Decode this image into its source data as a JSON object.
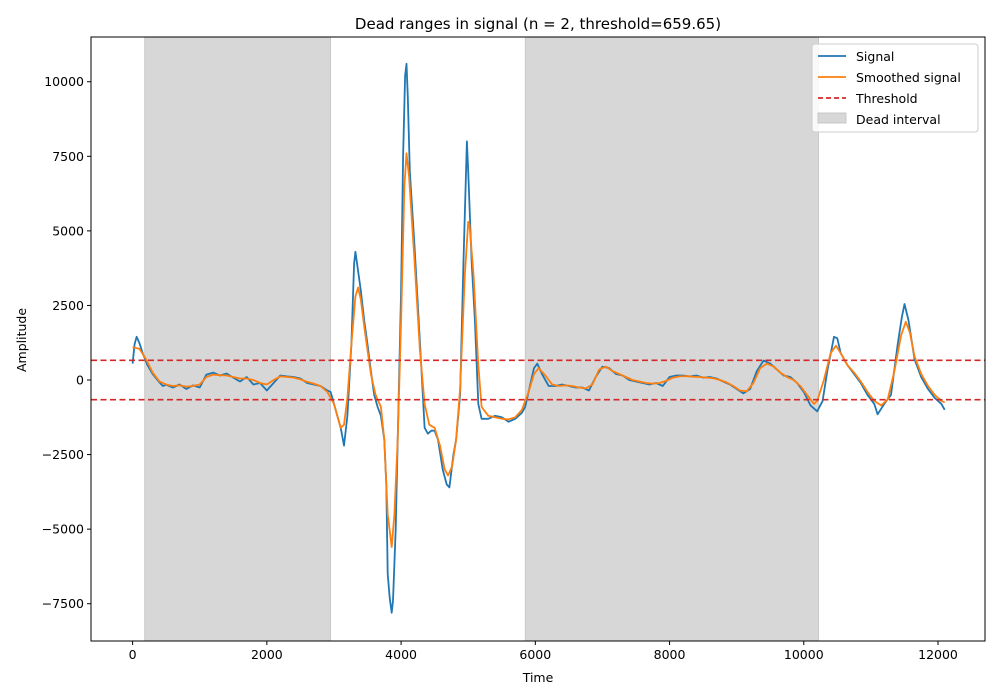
{
  "chart_data": {
    "type": "line",
    "title": "Dead ranges in signal (n = 2, threshold=659.65)",
    "xlabel": "Time",
    "ylabel": "Amplitude",
    "xlim": [
      -620,
      12700
    ],
    "ylim": [
      -8750,
      11500
    ],
    "xticks": [
      0,
      2000,
      4000,
      6000,
      8000,
      10000,
      12000
    ],
    "xtick_labels": [
      "0",
      "2000",
      "4000",
      "6000",
      "8000",
      "10000",
      "12000"
    ],
    "yticks": [
      -7500,
      -5000,
      -2500,
      0,
      2500,
      5000,
      7500,
      10000
    ],
    "ytick_labels": [
      "−7500",
      "−5000",
      "−2500",
      "0",
      "2500",
      "5000",
      "7500",
      "10000"
    ],
    "threshold": 659.65,
    "threshold_color": "#d62728",
    "dead_intervals": [
      [
        180,
        2950
      ],
      [
        5850,
        10220
      ]
    ],
    "dead_color": "#d7d7d7",
    "legend_position": "top-right",
    "legend": [
      "Signal",
      "Smoothed signal",
      "Threshold",
      "Dead interval"
    ],
    "series": [
      {
        "name": "Signal",
        "color": "#1f77b4",
        "points": [
          [
            0,
            550
          ],
          [
            30,
            1200
          ],
          [
            60,
            1450
          ],
          [
            100,
            1250
          ],
          [
            150,
            900
          ],
          [
            220,
            500
          ],
          [
            300,
            200
          ],
          [
            400,
            -80
          ],
          [
            450,
            -200
          ],
          [
            500,
            -160
          ],
          [
            600,
            -250
          ],
          [
            700,
            -150
          ],
          [
            800,
            -300
          ],
          [
            900,
            -180
          ],
          [
            1000,
            -250
          ],
          [
            1100,
            180
          ],
          [
            1200,
            250
          ],
          [
            1300,
            150
          ],
          [
            1400,
            220
          ],
          [
            1500,
            80
          ],
          [
            1600,
            -50
          ],
          [
            1700,
            100
          ],
          [
            1800,
            -150
          ],
          [
            1900,
            -100
          ],
          [
            2000,
            -350
          ],
          [
            2100,
            -100
          ],
          [
            2200,
            150
          ],
          [
            2300,
            120
          ],
          [
            2400,
            100
          ],
          [
            2500,
            50
          ],
          [
            2600,
            -100
          ],
          [
            2700,
            -150
          ],
          [
            2800,
            -200
          ],
          [
            2900,
            -350
          ],
          [
            2950,
            -400
          ],
          [
            3050,
            -1200
          ],
          [
            3100,
            -1600
          ],
          [
            3150,
            -2200
          ],
          [
            3200,
            -1200
          ],
          [
            3260,
            1200
          ],
          [
            3300,
            3900
          ],
          [
            3320,
            4300
          ],
          [
            3350,
            3800
          ],
          [
            3400,
            3000
          ],
          [
            3450,
            2000
          ],
          [
            3500,
            1200
          ],
          [
            3550,
            300
          ],
          [
            3600,
            -500
          ],
          [
            3650,
            -900
          ],
          [
            3700,
            -1200
          ],
          [
            3750,
            -2000
          ],
          [
            3780,
            -3500
          ],
          [
            3800,
            -6500
          ],
          [
            3830,
            -7300
          ],
          [
            3860,
            -7800
          ],
          [
            3880,
            -7400
          ],
          [
            3920,
            -5000
          ],
          [
            3950,
            -2000
          ],
          [
            4000,
            3000
          ],
          [
            4030,
            7500
          ],
          [
            4060,
            10200
          ],
          [
            4080,
            10600
          ],
          [
            4100,
            9500
          ],
          [
            4130,
            7000
          ],
          [
            4200,
            4500
          ],
          [
            4300,
            500
          ],
          [
            4350,
            -1600
          ],
          [
            4400,
            -1800
          ],
          [
            4450,
            -1700
          ],
          [
            4500,
            -1700
          ],
          [
            4550,
            -2000
          ],
          [
            4620,
            -3000
          ],
          [
            4680,
            -3500
          ],
          [
            4720,
            -3600
          ],
          [
            4780,
            -2500
          ],
          [
            4820,
            -2000
          ],
          [
            4880,
            -500
          ],
          [
            4930,
            4000
          ],
          [
            4980,
            8000
          ],
          [
            5000,
            7000
          ],
          [
            5050,
            4000
          ],
          [
            5100,
            2000
          ],
          [
            5150,
            -800
          ],
          [
            5200,
            -1300
          ],
          [
            5300,
            -1300
          ],
          [
            5400,
            -1200
          ],
          [
            5500,
            -1250
          ],
          [
            5600,
            -1400
          ],
          [
            5700,
            -1300
          ],
          [
            5800,
            -1100
          ],
          [
            5850,
            -900
          ],
          [
            5920,
            -200
          ],
          [
            5980,
            400
          ],
          [
            6030,
            550
          ],
          [
            6100,
            200
          ],
          [
            6200,
            -200
          ],
          [
            6300,
            -200
          ],
          [
            6400,
            -150
          ],
          [
            6500,
            -200
          ],
          [
            6600,
            -250
          ],
          [
            6700,
            -250
          ],
          [
            6800,
            -350
          ],
          [
            6900,
            100
          ],
          [
            7000,
            450
          ],
          [
            7100,
            400
          ],
          [
            7200,
            200
          ],
          [
            7300,
            150
          ],
          [
            7400,
            0
          ],
          [
            7500,
            -50
          ],
          [
            7600,
            -100
          ],
          [
            7700,
            -150
          ],
          [
            7800,
            -100
          ],
          [
            7900,
            -200
          ],
          [
            8000,
            100
          ],
          [
            8100,
            150
          ],
          [
            8200,
            150
          ],
          [
            8300,
            120
          ],
          [
            8400,
            150
          ],
          [
            8500,
            80
          ],
          [
            8600,
            100
          ],
          [
            8700,
            50
          ],
          [
            8800,
            -50
          ],
          [
            8900,
            -150
          ],
          [
            9000,
            -300
          ],
          [
            9100,
            -450
          ],
          [
            9200,
            -300
          ],
          [
            9300,
            300
          ],
          [
            9400,
            650
          ],
          [
            9500,
            550
          ],
          [
            9600,
            350
          ],
          [
            9700,
            150
          ],
          [
            9800,
            100
          ],
          [
            9900,
            -100
          ],
          [
            10000,
            -400
          ],
          [
            10100,
            -850
          ],
          [
            10200,
            -1050
          ],
          [
            10280,
            -700
          ],
          [
            10350,
            300
          ],
          [
            10450,
            1450
          ],
          [
            10500,
            1400
          ],
          [
            10550,
            900
          ],
          [
            10650,
            500
          ],
          [
            10750,
            200
          ],
          [
            10850,
            -100
          ],
          [
            10950,
            -500
          ],
          [
            11050,
            -800
          ],
          [
            11100,
            -1150
          ],
          [
            11200,
            -800
          ],
          [
            11300,
            -500
          ],
          [
            11400,
            1200
          ],
          [
            11460,
            2100
          ],
          [
            11500,
            2550
          ],
          [
            11560,
            2000
          ],
          [
            11650,
            700
          ],
          [
            11750,
            100
          ],
          [
            11850,
            -300
          ],
          [
            11950,
            -600
          ],
          [
            12050,
            -800
          ],
          [
            12100,
            -1000
          ]
        ]
      },
      {
        "name": "Smoothed signal",
        "color": "#ff7f0e",
        "points": [
          [
            0,
            1100
          ],
          [
            100,
            1050
          ],
          [
            200,
            700
          ],
          [
            300,
            250
          ],
          [
            400,
            -50
          ],
          [
            500,
            -150
          ],
          [
            600,
            -200
          ],
          [
            700,
            -180
          ],
          [
            800,
            -220
          ],
          [
            900,
            -200
          ],
          [
            1000,
            -150
          ],
          [
            1100,
            100
          ],
          [
            1200,
            180
          ],
          [
            1300,
            160
          ],
          [
            1400,
            150
          ],
          [
            1500,
            100
          ],
          [
            1600,
            50
          ],
          [
            1700,
            50
          ],
          [
            1800,
            0
          ],
          [
            1900,
            -100
          ],
          [
            2000,
            -150
          ],
          [
            2100,
            0
          ],
          [
            2200,
            120
          ],
          [
            2300,
            100
          ],
          [
            2400,
            80
          ],
          [
            2500,
            20
          ],
          [
            2600,
            -60
          ],
          [
            2700,
            -120
          ],
          [
            2800,
            -200
          ],
          [
            2900,
            -400
          ],
          [
            3000,
            -800
          ],
          [
            3100,
            -1600
          ],
          [
            3150,
            -1500
          ],
          [
            3200,
            -600
          ],
          [
            3260,
            1200
          ],
          [
            3320,
            2800
          ],
          [
            3360,
            3100
          ],
          [
            3400,
            2700
          ],
          [
            3450,
            1800
          ],
          [
            3500,
            1000
          ],
          [
            3550,
            200
          ],
          [
            3620,
            -500
          ],
          [
            3700,
            -900
          ],
          [
            3750,
            -2000
          ],
          [
            3800,
            -4500
          ],
          [
            3860,
            -5600
          ],
          [
            3900,
            -4500
          ],
          [
            3950,
            -2000
          ],
          [
            4000,
            2000
          ],
          [
            4050,
            6500
          ],
          [
            4080,
            7600
          ],
          [
            4120,
            6800
          ],
          [
            4200,
            4000
          ],
          [
            4280,
            1000
          ],
          [
            4350,
            -800
          ],
          [
            4420,
            -1500
          ],
          [
            4500,
            -1600
          ],
          [
            4580,
            -2200
          ],
          [
            4650,
            -3000
          ],
          [
            4700,
            -3200
          ],
          [
            4760,
            -2900
          ],
          [
            4820,
            -2000
          ],
          [
            4880,
            -300
          ],
          [
            4950,
            3500
          ],
          [
            5000,
            5300
          ],
          [
            5020,
            5200
          ],
          [
            5080,
            3500
          ],
          [
            5150,
            500
          ],
          [
            5200,
            -900
          ],
          [
            5300,
            -1200
          ],
          [
            5400,
            -1250
          ],
          [
            5500,
            -1300
          ],
          [
            5600,
            -1320
          ],
          [
            5700,
            -1250
          ],
          [
            5800,
            -1000
          ],
          [
            5900,
            -400
          ],
          [
            5980,
            200
          ],
          [
            6050,
            400
          ],
          [
            6150,
            150
          ],
          [
            6250,
            -150
          ],
          [
            6350,
            -200
          ],
          [
            6450,
            -180
          ],
          [
            6550,
            -200
          ],
          [
            6650,
            -250
          ],
          [
            6750,
            -280
          ],
          [
            6850,
            -150
          ],
          [
            6950,
            350
          ],
          [
            7050,
            450
          ],
          [
            7150,
            300
          ],
          [
            7250,
            200
          ],
          [
            7350,
            100
          ],
          [
            7450,
            0
          ],
          [
            7550,
            -50
          ],
          [
            7650,
            -100
          ],
          [
            7750,
            -120
          ],
          [
            7850,
            -100
          ],
          [
            7950,
            -30
          ],
          [
            8050,
            80
          ],
          [
            8150,
            120
          ],
          [
            8250,
            130
          ],
          [
            8350,
            110
          ],
          [
            8450,
            100
          ],
          [
            8550,
            80
          ],
          [
            8650,
            60
          ],
          [
            8750,
            0
          ],
          [
            8850,
            -80
          ],
          [
            8950,
            -200
          ],
          [
            9050,
            -350
          ],
          [
            9150,
            -380
          ],
          [
            9250,
            -100
          ],
          [
            9350,
            400
          ],
          [
            9450,
            550
          ],
          [
            9550,
            450
          ],
          [
            9650,
            250
          ],
          [
            9750,
            100
          ],
          [
            9850,
            0
          ],
          [
            9950,
            -200
          ],
          [
            10050,
            -500
          ],
          [
            10150,
            -800
          ],
          [
            10200,
            -700
          ],
          [
            10300,
            0
          ],
          [
            10400,
            900
          ],
          [
            10480,
            1150
          ],
          [
            10550,
            900
          ],
          [
            10650,
            500
          ],
          [
            10750,
            250
          ],
          [
            10850,
            -50
          ],
          [
            10950,
            -400
          ],
          [
            11050,
            -700
          ],
          [
            11150,
            -850
          ],
          [
            11250,
            -650
          ],
          [
            11350,
            300
          ],
          [
            11450,
            1500
          ],
          [
            11520,
            1950
          ],
          [
            11580,
            1600
          ],
          [
            11650,
            800
          ],
          [
            11750,
            200
          ],
          [
            11850,
            -200
          ],
          [
            11950,
            -500
          ],
          [
            12050,
            -700
          ],
          [
            12100,
            -750
          ]
        ]
      }
    ]
  }
}
